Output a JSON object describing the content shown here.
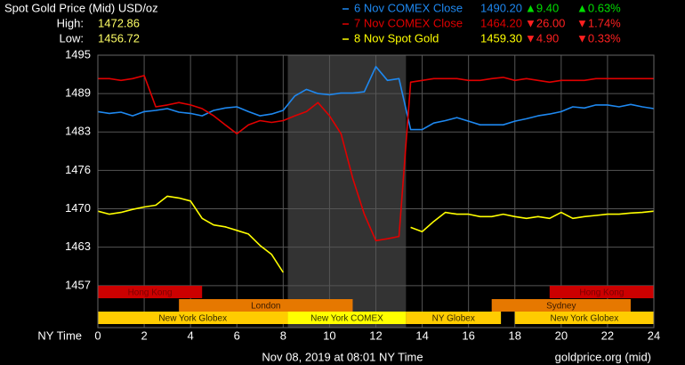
{
  "chart_data": {
    "type": "line",
    "title": "Spot Gold Price (Mid) USD/oz",
    "high_label": "High:",
    "high": 1472.86,
    "low_label": "Low:",
    "low": 1456.72,
    "x_label": "NY Time",
    "footer": "Nov 08, 2019 at 08:01 NY Time",
    "source": "goldprice.org (mid)",
    "x": [
      0,
      0.5,
      1,
      1.5,
      2,
      2.5,
      3,
      3.5,
      4,
      4.5,
      5,
      5.5,
      6,
      6.5,
      7,
      7.5,
      8,
      8.5,
      9,
      9.5,
      10,
      10.5,
      11,
      11.5,
      12,
      12.5,
      13,
      13.5,
      14,
      14.5,
      15,
      15.5,
      16,
      16.5,
      17,
      17.5,
      18,
      18.5,
      19,
      19.5,
      20,
      20.5,
      21,
      21.5,
      22,
      22.5,
      23,
      23.5,
      24
    ],
    "xlim": [
      0,
      24
    ],
    "xticks": [
      0,
      2,
      4,
      6,
      8,
      10,
      12,
      14,
      16,
      18,
      20,
      22,
      24
    ],
    "ylim": [
      1450,
      1495.4
    ],
    "yticks": [
      {
        "value": 1457,
        "label": "1457"
      },
      {
        "value": 1463.4,
        "label": "1463"
      },
      {
        "value": 1469.8,
        "label": "1470"
      },
      {
        "value": 1476.2,
        "label": "1476"
      },
      {
        "value": 1482.6,
        "label": "1483"
      },
      {
        "value": 1489,
        "label": "1489"
      },
      {
        "value": 1495.4,
        "label": "1495"
      }
    ],
    "grid": true,
    "highlight_x": [
      8.2,
      13.3
    ],
    "series": [
      {
        "name": "6 Nov COMEX Close",
        "color": "#1e88f0",
        "close": {
          "value": 1490.2,
          "label": "1490.20"
        },
        "change": {
          "value": 9.4,
          "label": "▲9.40"
        },
        "change_pct": {
          "value": 0.63,
          "label": "▲0.63%"
        },
        "values": [
          1486.0,
          1485.7,
          1485.9,
          1485.3,
          1486.0,
          1486.2,
          1486.5,
          1485.9,
          1485.7,
          1485.3,
          1486.2,
          1486.6,
          1486.8,
          1486.0,
          1485.3,
          1485.6,
          1486.2,
          1488.6,
          1489.7,
          1489.0,
          1488.8,
          1489.1,
          1489.1,
          1489.3,
          1493.5,
          1491.2,
          1491.5,
          1483.0,
          1483.0,
          1484.1,
          1484.5,
          1485.0,
          1484.4,
          1483.8,
          1483.8,
          1483.8,
          1484.4,
          1484.8,
          1485.3,
          1485.6,
          1486.0,
          1486.8,
          1486.6,
          1487.1,
          1487.1,
          1486.8,
          1487.2,
          1486.8,
          1486.5
        ]
      },
      {
        "name": "7 Nov COMEX Close",
        "color": "#e00000",
        "close": {
          "value": 1464.2,
          "label": "1464.20"
        },
        "change": {
          "value": -26,
          "label": "▼26.00"
        },
        "change_pct": {
          "value": -1.74,
          "label": "▼1.74%"
        },
        "values": [
          1491.5,
          1491.5,
          1491.2,
          1491.5,
          1492.0,
          1486.8,
          1487.1,
          1487.5,
          1487.1,
          1486.5,
          1485.3,
          1483.8,
          1482.3,
          1483.8,
          1484.5,
          1484.2,
          1484.5,
          1485.3,
          1486.0,
          1487.5,
          1485.3,
          1482.3,
          1474.9,
          1468.9,
          1464.5,
          1464.8,
          1465.2,
          1490.9,
          1491.2,
          1491.5,
          1491.5,
          1491.5,
          1491.2,
          1491.2,
          1491.5,
          1491.7,
          1491.2,
          1491.5,
          1491.2,
          1490.9,
          1491.2,
          1491.2,
          1491.2,
          1491.5,
          1491.5,
          1491.5,
          1491.5,
          1491.5,
          1491.5
        ]
      },
      {
        "name": "8 Nov Spot Gold",
        "color": "#ffff00",
        "close": {
          "value": 1459.3,
          "label": "1459.30"
        },
        "change": {
          "value": -4.9,
          "label": "▼4.90"
        },
        "change_pct": {
          "value": -0.33,
          "label": "▼0.33%"
        },
        "values": [
          1469.4,
          1468.9,
          1469.2,
          1469.7,
          1470.1,
          1470.4,
          1471.9,
          1471.6,
          1471.1,
          1468.2,
          1467.1,
          1466.8,
          1466.2,
          1465.6,
          1463.7,
          1462.2,
          1459.2,
          null,
          null,
          null,
          null,
          null,
          null,
          null,
          null,
          null,
          null,
          1466.7,
          1466.0,
          1467.7,
          1469.2,
          1468.9,
          1468.9,
          1468.5,
          1468.5,
          1468.9,
          1468.5,
          1468.2,
          1468.5,
          1468.2,
          1469.2,
          1468.2,
          1468.5,
          1468.7,
          1468.9,
          1468.9,
          1469.1,
          1469.2,
          1469.4
        ]
      }
    ],
    "sessions": [
      {
        "name": "Hong Kong",
        "start": 0,
        "end": 4.5,
        "row": 0,
        "color": "#cc0000",
        "text_color": "#7a0000"
      },
      {
        "name": "Hong Kong",
        "start": 19.5,
        "end": 24,
        "row": 0,
        "color": "#cc0000",
        "text_color": "#7a0000"
      },
      {
        "name": "London",
        "start": 3.5,
        "end": 11,
        "row": 1,
        "color": "#e67800",
        "text_color": "#3a1a00"
      },
      {
        "name": "Sydney",
        "start": 17,
        "end": 23,
        "row": 1,
        "color": "#e67800",
        "text_color": "#3a1a00"
      },
      {
        "name": "New York Globex",
        "start": 0,
        "end": 8.2,
        "row": 2,
        "color": "#ffcc00",
        "text_color": "#332800"
      },
      {
        "name": "New York COMEX",
        "start": 8.2,
        "end": 13.3,
        "row": 2,
        "color": "#ffff00",
        "text_color": "#333300"
      },
      {
        "name": "NY Globex",
        "start": 13.3,
        "end": 17.4,
        "row": 2,
        "color": "#ffcc00",
        "text_color": "#332800"
      },
      {
        "name": "New York Globex",
        "start": 18,
        "end": 24,
        "row": 2,
        "color": "#ffcc00",
        "text_color": "#332800"
      }
    ]
  }
}
